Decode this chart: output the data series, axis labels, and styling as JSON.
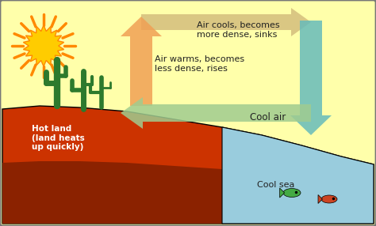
{
  "sky_color": "#ffffaa",
  "land_color_top": "#cc3300",
  "land_color_bottom": "#8b2200",
  "sea_color": "#99ccdd",
  "border_color": "#777777",
  "text_hot_land": "Hot land\n(land heats\nup quickly)",
  "text_cool_sea": "Cool sea",
  "text_cool_air": "Cool air",
  "text_warm_air": "Air warms, becomes\nless dense, rises",
  "text_cool_sinks": "Air cools, becomes\nmore dense, sinks",
  "arrow_up_color": "#f0a055",
  "arrow_down_color": "#66bbbb",
  "arrow_top_color": "#d0b878",
  "arrow_bot_color": "#a0cc90",
  "sun_body_color": "#ffcc00",
  "sun_ray_color": "#ff8800",
  "cactus_color": "#2d7a2d",
  "fish1_color": "#44aa44",
  "fish2_color": "#cc4422",
  "figsize": [
    4.74,
    2.86
  ],
  "dpi": 100
}
